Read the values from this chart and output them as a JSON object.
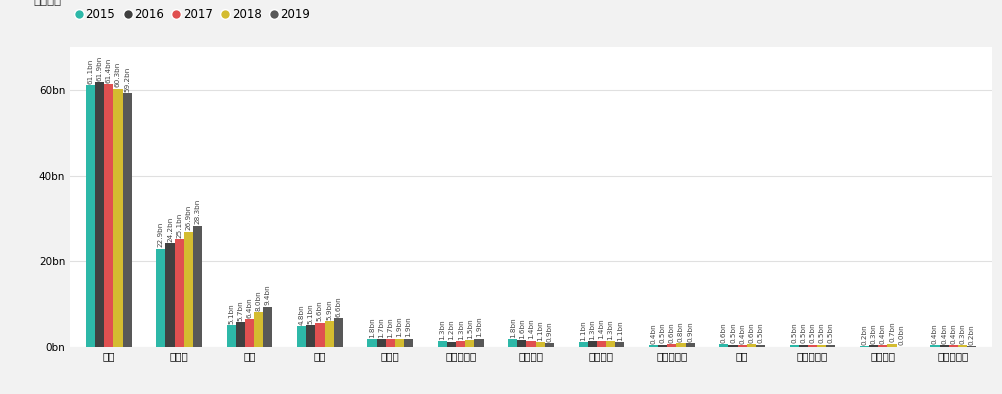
{
  "categories": [
    "教授",
    "准教授",
    "助教",
    "講師",
    "研究員",
    "主任研究員",
    "名誉教授",
    "特任教授",
    "特任准教授",
    "室長",
    "客員研究員",
    "特任助教",
    "非常勤講師"
  ],
  "years": [
    "2015",
    "2016",
    "2017",
    "2018",
    "2019"
  ],
  "colors": [
    "#2db8a8",
    "#404040",
    "#e05050",
    "#d4bc30",
    "#585858"
  ],
  "values": {
    "教授": [
      61.1,
      61.9,
      61.4,
      60.3,
      59.2
    ],
    "准教授": [
      22.9,
      24.2,
      25.1,
      26.9,
      28.3
    ],
    "助教": [
      5.1,
      5.7,
      6.4,
      8.0,
      9.4
    ],
    "講師": [
      4.8,
      5.1,
      5.6,
      5.9,
      6.6
    ],
    "研究員": [
      1.8,
      1.7,
      1.7,
      1.9,
      1.9
    ],
    "主任研究員": [
      1.3,
      1.2,
      1.3,
      1.5,
      1.9
    ],
    "名誉教授": [
      1.8,
      1.6,
      1.4,
      1.1,
      0.9
    ],
    "特任教授": [
      1.1,
      1.3,
      1.4,
      1.3,
      1.1
    ],
    "特任准教授": [
      0.4,
      0.5,
      0.6,
      0.8,
      0.9
    ],
    "室長": [
      0.6,
      0.5,
      0.4,
      0.6,
      0.5
    ],
    "客員研究員": [
      0.5,
      0.5,
      0.5,
      0.5,
      0.5
    ],
    "特任助教": [
      0.2,
      0.3,
      0.4,
      0.7,
      0.0
    ],
    "非常勤講師": [
      0.4,
      0.4,
      0.4,
      0.3,
      0.2
    ]
  },
  "labels": {
    "教授": [
      "61.1bn",
      "61.9bn",
      "61.4bn",
      "60.3bn",
      "59.2bn"
    ],
    "准教授": [
      "22.9bn",
      "24.2bn",
      "25.1bn",
      "26.9bn",
      "28.3bn"
    ],
    "助教": [
      "5.1bn",
      "5.7bn",
      "6.4bn",
      "8.0bn",
      "9.4bn"
    ],
    "講師": [
      "4.8bn",
      "5.1bn",
      "5.6bn",
      "5.9bn",
      "6.6bn"
    ],
    "研究員": [
      "1.8bn",
      "1.7bn",
      "1.7bn",
      "1.9bn",
      "1.9bn"
    ],
    "主任研究員": [
      "1.3bn",
      "1.2bn",
      "1.3bn",
      "1.5bn",
      "1.9bn"
    ],
    "名誉教授": [
      "1.8bn",
      "1.6bn",
      "1.4bn",
      "1.1bn",
      "0.9bn"
    ],
    "特任教授": [
      "1.1bn",
      "1.3bn",
      "1.4bn",
      "1.3bn",
      "1.1bn"
    ],
    "特任准教授": [
      "0.4bn",
      "0.5bn",
      "0.6bn",
      "0.8bn",
      "0.9bn"
    ],
    "室長": [
      "0.6bn",
      "0.5bn",
      "0.4bn",
      "0.6bn",
      "0.5bn"
    ],
    "客員研究員": [
      "0.5bn",
      "0.5bn",
      "0.5bn",
      "0.5bn",
      "0.5bn"
    ],
    "特任助教": [
      "0.2bn",
      "0.3bn",
      "0.4bn",
      "0.7bn",
      "0.0bn"
    ],
    "非常勤講師": [
      "0.4bn",
      "0.4bn",
      "0.4bn",
      "0.3bn",
      "0.2bn"
    ]
  },
  "ylim": [
    0,
    70
  ],
  "yticks": [
    0,
    20,
    40,
    60
  ],
  "ytick_labels": [
    "0bn",
    "20bn",
    "40bn",
    "60bn"
  ],
  "legend_label": "配分年度",
  "background_color": "#f2f2f2",
  "plot_bg_color": "#ffffff",
  "grid_color": "#e0e0e0",
  "bar_width": 0.13,
  "label_fontsize": 5.2,
  "axis_fontsize": 7.5,
  "legend_fontsize": 8.5
}
